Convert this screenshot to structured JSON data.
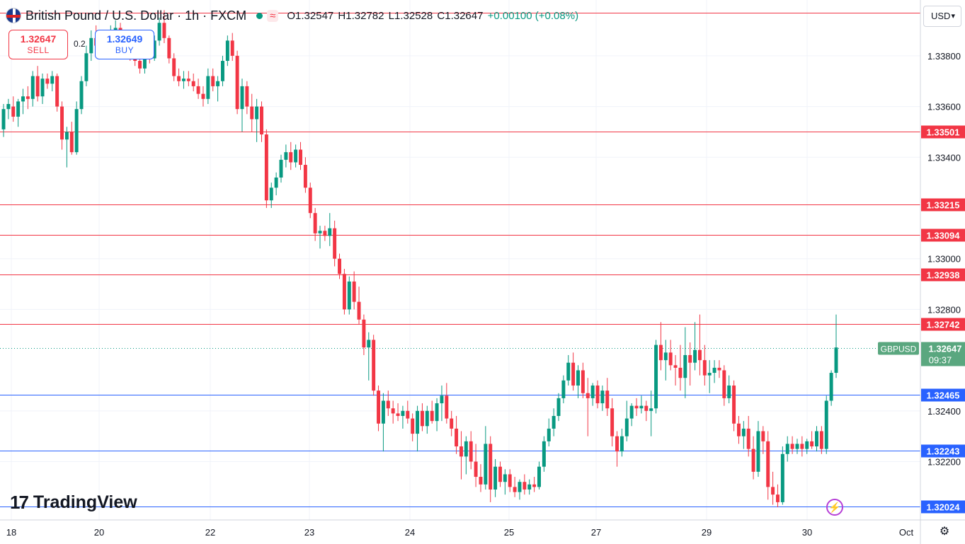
{
  "header": {
    "symbol_title": "British Pound / U.S. Dollar",
    "interval": "1h",
    "exchange": "FXCM",
    "open_label": "O1.32547",
    "high_label": "H1.32782",
    "low_label": "L1.32528",
    "close_label": "C1.32647",
    "change_label": "+0.00100 (+0.08%)"
  },
  "trade": {
    "sell_price": "1.32647",
    "sell_label": "SELL",
    "buy_price": "1.32649",
    "buy_label": "BUY",
    "spread": "0.2"
  },
  "currency_selector": "USD",
  "branding": "TradingView",
  "icons": {
    "flag": "gbp-usd-flag-icon",
    "status": "market-open-dot-icon",
    "wave": "wave-icon",
    "logo": "tradingview-logo-icon",
    "bolt": "lightning-icon",
    "settings": "gear-icon"
  },
  "colors": {
    "up": "#089981",
    "down": "#f23645",
    "resistance": "#f23645",
    "support": "#2962ff",
    "current_label_bg": "#5aa77f"
  },
  "chart_data": {
    "type": "candlestick",
    "title": "British Pound / U.S. Dollar · 1h · FXCM",
    "ylim": [
      1.3197,
      1.3402
    ],
    "y_ticks": [
      "1.33800",
      "1.33600",
      "1.33400",
      "1.33000",
      "1.32800",
      "1.32400",
      "1.32200"
    ],
    "x_ticks": [
      "18",
      "20",
      "22",
      "23",
      "24",
      "25",
      "27",
      "29",
      "30",
      "Oct"
    ],
    "resistance_levels": [
      "1.33501",
      "1.33215",
      "1.33094",
      "1.32938",
      "1.32742"
    ],
    "support_levels": [
      "1.32465",
      "1.32243",
      "1.32024"
    ],
    "current_price": {
      "symbol": "GBPUSD",
      "value": "1.32647",
      "countdown": "09:37"
    },
    "ohlc_hourly": [
      [
        1.3351,
        1.3361,
        1.3348,
        1.3359
      ],
      [
        1.3359,
        1.3363,
        1.3355,
        1.3361
      ],
      [
        1.336,
        1.3364,
        1.3354,
        1.3356
      ],
      [
        1.3356,
        1.3363,
        1.3352,
        1.3362
      ],
      [
        1.3362,
        1.3367,
        1.3357,
        1.3364
      ],
      [
        1.3364,
        1.3368,
        1.3359,
        1.3363
      ],
      [
        1.3363,
        1.3374,
        1.336,
        1.3372
      ],
      [
        1.3372,
        1.3376,
        1.3362,
        1.3364
      ],
      [
        1.3364,
        1.3373,
        1.3361,
        1.3371
      ],
      [
        1.3371,
        1.3373,
        1.3367,
        1.3369
      ],
      [
        1.3369,
        1.3374,
        1.3366,
        1.3372
      ],
      [
        1.3372,
        1.3373,
        1.3358,
        1.336
      ],
      [
        1.336,
        1.3362,
        1.3343,
        1.3347
      ],
      [
        1.3347,
        1.3352,
        1.3336,
        1.335
      ],
      [
        1.335,
        1.3354,
        1.3341,
        1.3342
      ],
      [
        1.3342,
        1.3362,
        1.3341,
        1.3359
      ],
      [
        1.3359,
        1.3372,
        1.3357,
        1.337
      ],
      [
        1.337,
        1.3384,
        1.3368,
        1.3381
      ],
      [
        1.3381,
        1.339,
        1.3378,
        1.3387
      ],
      [
        1.3387,
        1.3392,
        1.338,
        1.3384
      ],
      [
        1.3384,
        1.3389,
        1.3381,
        1.3386
      ],
      [
        1.3386,
        1.339,
        1.3382,
        1.3388
      ],
      [
        1.3388,
        1.3392,
        1.3384,
        1.339
      ],
      [
        1.339,
        1.3394,
        1.3386,
        1.3391
      ],
      [
        1.3391,
        1.3393,
        1.3382,
        1.3384
      ],
      [
        1.3384,
        1.3389,
        1.338,
        1.3387
      ],
      [
        1.3387,
        1.3388,
        1.3378,
        1.3381
      ],
      [
        1.3381,
        1.3386,
        1.3376,
        1.3378
      ],
      [
        1.3378,
        1.3381,
        1.3373,
        1.3375
      ],
      [
        1.3375,
        1.3383,
        1.3373,
        1.3382
      ],
      [
        1.3382,
        1.3387,
        1.3377,
        1.3379
      ],
      [
        1.3379,
        1.3388,
        1.3378,
        1.3386
      ],
      [
        1.3386,
        1.3395,
        1.3384,
        1.3393
      ],
      [
        1.3393,
        1.3398,
        1.3385,
        1.3387
      ],
      [
        1.3387,
        1.3388,
        1.3377,
        1.3379
      ],
      [
        1.3379,
        1.3381,
        1.337,
        1.3372
      ],
      [
        1.3372,
        1.3375,
        1.3368,
        1.337
      ],
      [
        1.337,
        1.3374,
        1.3367,
        1.3371
      ],
      [
        1.3371,
        1.3374,
        1.3368,
        1.337
      ],
      [
        1.337,
        1.3373,
        1.3366,
        1.3368
      ],
      [
        1.3368,
        1.3371,
        1.3363,
        1.3365
      ],
      [
        1.3365,
        1.3368,
        1.336,
        1.3363
      ],
      [
        1.3363,
        1.3375,
        1.3361,
        1.3372
      ],
      [
        1.3372,
        1.3375,
        1.3366,
        1.3368
      ],
      [
        1.3368,
        1.3372,
        1.3362,
        1.337
      ],
      [
        1.337,
        1.338,
        1.3368,
        1.3378
      ],
      [
        1.3378,
        1.3388,
        1.3376,
        1.3386
      ],
      [
        1.3386,
        1.3389,
        1.3378,
        1.338
      ],
      [
        1.338,
        1.3382,
        1.3357,
        1.3359
      ],
      [
        1.3359,
        1.3371,
        1.335,
        1.3368
      ],
      [
        1.3368,
        1.337,
        1.3357,
        1.336
      ],
      [
        1.336,
        1.3365,
        1.335,
        1.3355
      ],
      [
        1.3355,
        1.3363,
        1.3346,
        1.336
      ],
      [
        1.336,
        1.3362,
        1.3346,
        1.3349
      ],
      [
        1.3349,
        1.3351,
        1.332,
        1.3323
      ],
      [
        1.3323,
        1.333,
        1.332,
        1.3328
      ],
      [
        1.3328,
        1.3334,
        1.3325,
        1.3332
      ],
      [
        1.3332,
        1.3341,
        1.333,
        1.3339
      ],
      [
        1.3339,
        1.3345,
        1.3336,
        1.3342
      ],
      [
        1.3342,
        1.3346,
        1.3335,
        1.3338
      ],
      [
        1.3338,
        1.3345,
        1.3336,
        1.3343
      ],
      [
        1.3343,
        1.3346,
        1.3335,
        1.3337
      ],
      [
        1.3337,
        1.334,
        1.3326,
        1.3328
      ],
      [
        1.3328,
        1.333,
        1.3316,
        1.3318
      ],
      [
        1.3318,
        1.332,
        1.3307,
        1.331
      ],
      [
        1.331,
        1.3313,
        1.3304,
        1.3311
      ],
      [
        1.3311,
        1.3313,
        1.3307,
        1.3309
      ],
      [
        1.3309,
        1.3318,
        1.3305,
        1.3312
      ],
      [
        1.3312,
        1.3315,
        1.3297,
        1.33
      ],
      [
        1.33,
        1.3302,
        1.3292,
        1.3294
      ],
      [
        1.3294,
        1.3296,
        1.3278,
        1.328
      ],
      [
        1.328,
        1.3293,
        1.3278,
        1.3291
      ],
      [
        1.3291,
        1.3295,
        1.328,
        1.3283
      ],
      [
        1.3283,
        1.3289,
        1.3274,
        1.3276
      ],
      [
        1.3276,
        1.3278,
        1.3262,
        1.3265
      ],
      [
        1.3265,
        1.3271,
        1.3252,
        1.3268
      ],
      [
        1.3268,
        1.327,
        1.3246,
        1.3248
      ],
      [
        1.3248,
        1.325,
        1.3232,
        1.3235
      ],
      [
        1.3235,
        1.3247,
        1.3224,
        1.3244
      ],
      [
        1.3244,
        1.3248,
        1.3238,
        1.3241
      ],
      [
        1.3241,
        1.3244,
        1.3235,
        1.3239
      ],
      [
        1.3239,
        1.3243,
        1.3236,
        1.3238
      ],
      [
        1.3238,
        1.3242,
        1.3233,
        1.324
      ],
      [
        1.324,
        1.3244,
        1.3235,
        1.3237
      ],
      [
        1.3237,
        1.3239,
        1.3228,
        1.3231
      ],
      [
        1.3231,
        1.3242,
        1.3224,
        1.324
      ],
      [
        1.324,
        1.3243,
        1.3232,
        1.3234
      ],
      [
        1.3234,
        1.3242,
        1.3231,
        1.324
      ],
      [
        1.324,
        1.3244,
        1.3235,
        1.3236
      ],
      [
        1.3236,
        1.3245,
        1.3232,
        1.3243
      ],
      [
        1.3243,
        1.325,
        1.3236,
        1.3246
      ],
      [
        1.3246,
        1.3251,
        1.3235,
        1.3237
      ],
      [
        1.3237,
        1.324,
        1.323,
        1.3233
      ],
      [
        1.3233,
        1.3238,
        1.3223,
        1.3226
      ],
      [
        1.3226,
        1.3232,
        1.3213,
        1.3222
      ],
      [
        1.3222,
        1.323,
        1.3215,
        1.3228
      ],
      [
        1.3228,
        1.3232,
        1.3217,
        1.322
      ],
      [
        1.322,
        1.3227,
        1.321,
        1.3214
      ],
      [
        1.3214,
        1.3219,
        1.3208,
        1.3211
      ],
      [
        1.3211,
        1.3234,
        1.3209,
        1.3227
      ],
      [
        1.3227,
        1.323,
        1.3204,
        1.3209
      ],
      [
        1.3209,
        1.3221,
        1.3206,
        1.3218
      ],
      [
        1.3218,
        1.322,
        1.321,
        1.3212
      ],
      [
        1.3212,
        1.3217,
        1.3207,
        1.3215
      ],
      [
        1.3215,
        1.3217,
        1.3208,
        1.321
      ],
      [
        1.321,
        1.3214,
        1.3206,
        1.3208
      ],
      [
        1.3208,
        1.3213,
        1.3205,
        1.3212
      ],
      [
        1.3212,
        1.3215,
        1.3207,
        1.3209
      ],
      [
        1.3209,
        1.3213,
        1.3207,
        1.3211
      ],
      [
        1.3211,
        1.3214,
        1.3208,
        1.321
      ],
      [
        1.321,
        1.322,
        1.3209,
        1.3218
      ],
      [
        1.3218,
        1.323,
        1.3216,
        1.3228
      ],
      [
        1.3228,
        1.3237,
        1.3226,
        1.3233
      ],
      [
        1.3233,
        1.3241,
        1.323,
        1.3238
      ],
      [
        1.3238,
        1.3247,
        1.3236,
        1.3245
      ],
      [
        1.3245,
        1.3254,
        1.3243,
        1.3252
      ],
      [
        1.3252,
        1.3262,
        1.325,
        1.3259
      ],
      [
        1.3259,
        1.3263,
        1.3248,
        1.325
      ],
      [
        1.325,
        1.3258,
        1.3245,
        1.3256
      ],
      [
        1.3256,
        1.3259,
        1.3245,
        1.3247
      ],
      [
        1.3247,
        1.3253,
        1.323,
        1.3245
      ],
      [
        1.3245,
        1.3251,
        1.3242,
        1.325
      ],
      [
        1.325,
        1.3252,
        1.3241,
        1.3243
      ],
      [
        1.3243,
        1.325,
        1.324,
        1.3248
      ],
      [
        1.3248,
        1.3253,
        1.3238,
        1.3241
      ],
      [
        1.3241,
        1.3245,
        1.3226,
        1.323
      ],
      [
        1.323,
        1.3232,
        1.3218,
        1.3224
      ],
      [
        1.3224,
        1.3233,
        1.3222,
        1.323
      ],
      [
        1.323,
        1.3244,
        1.3228,
        1.3237
      ],
      [
        1.3237,
        1.3243,
        1.3234,
        1.3242
      ],
      [
        1.3242,
        1.3245,
        1.3238,
        1.3241
      ],
      [
        1.3241,
        1.3246,
        1.3239,
        1.3242
      ],
      [
        1.3242,
        1.3244,
        1.3236,
        1.324
      ],
      [
        1.324,
        1.3248,
        1.323,
        1.3241
      ],
      [
        1.3241,
        1.3268,
        1.3239,
        1.3266
      ],
      [
        1.3266,
        1.3275,
        1.3256,
        1.326
      ],
      [
        1.326,
        1.3268,
        1.3252,
        1.3263
      ],
      [
        1.3263,
        1.3268,
        1.3256,
        1.3258
      ],
      [
        1.3258,
        1.3262,
        1.325,
        1.3257
      ],
      [
        1.3257,
        1.3266,
        1.3248,
        1.3253
      ],
      [
        1.3253,
        1.3273,
        1.3245,
        1.3262
      ],
      [
        1.3262,
        1.3267,
        1.325,
        1.3259
      ],
      [
        1.3259,
        1.3275,
        1.3256,
        1.3264
      ],
      [
        1.3264,
        1.3278,
        1.3254,
        1.326
      ],
      [
        1.326,
        1.3266,
        1.325,
        1.3254
      ],
      [
        1.3254,
        1.326,
        1.3247,
        1.3255
      ],
      [
        1.3255,
        1.326,
        1.3251,
        1.3257
      ],
      [
        1.3257,
        1.326,
        1.3253,
        1.3256
      ],
      [
        1.3256,
        1.3258,
        1.3242,
        1.3245
      ],
      [
        1.3245,
        1.3254,
        1.3243,
        1.325
      ],
      [
        1.325,
        1.3252,
        1.3232,
        1.3235
      ],
      [
        1.3235,
        1.3238,
        1.3227,
        1.323
      ],
      [
        1.323,
        1.3236,
        1.3225,
        1.3233
      ],
      [
        1.3233,
        1.3238,
        1.3222,
        1.3225
      ],
      [
        1.3225,
        1.323,
        1.3213,
        1.3216
      ],
      [
        1.3216,
        1.3236,
        1.3214,
        1.3232
      ],
      [
        1.3232,
        1.3234,
        1.3223,
        1.3228
      ],
      [
        1.3228,
        1.3232,
        1.3205,
        1.321
      ],
      [
        1.321,
        1.3216,
        1.3203,
        1.3207
      ],
      [
        1.3207,
        1.3211,
        1.3202,
        1.3204
      ],
      [
        1.3204,
        1.3226,
        1.3203,
        1.3223
      ],
      [
        1.3223,
        1.323,
        1.322,
        1.3227
      ],
      [
        1.3227,
        1.323,
        1.3223,
        1.3225
      ],
      [
        1.3225,
        1.3229,
        1.3223,
        1.3227
      ],
      [
        1.3227,
        1.323,
        1.3222,
        1.3225
      ],
      [
        1.3225,
        1.3229,
        1.3223,
        1.3228
      ],
      [
        1.3228,
        1.3232,
        1.3225,
        1.3226
      ],
      [
        1.3226,
        1.3234,
        1.3224,
        1.3232
      ],
      [
        1.3232,
        1.3234,
        1.3223,
        1.3225
      ],
      [
        1.3225,
        1.3246,
        1.3223,
        1.3244
      ],
      [
        1.3244,
        1.3256,
        1.3242,
        1.3255
      ],
      [
        1.3255,
        1.3278,
        1.3253,
        1.3265
      ]
    ]
  }
}
